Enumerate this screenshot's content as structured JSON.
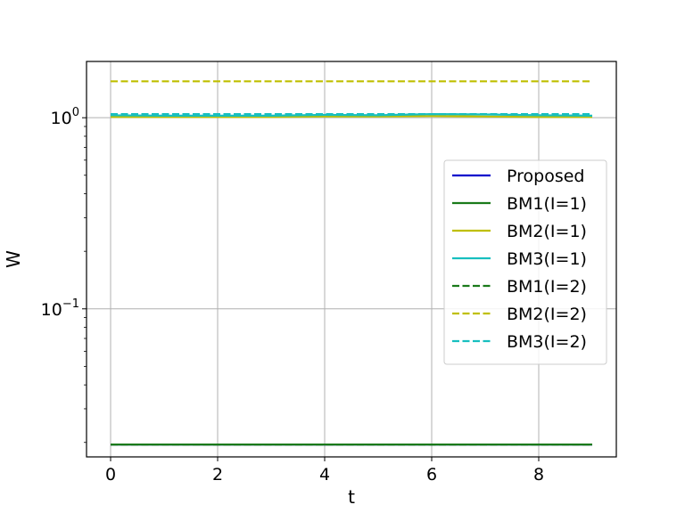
{
  "chart_data": {
    "type": "line",
    "title": "",
    "xlabel": "t",
    "ylabel": "W",
    "xlim": [
      -0.45,
      9.45
    ],
    "ylim": [
      0.0168,
      1.97
    ],
    "yscale": "log",
    "grid": true,
    "legend_position": "right",
    "x_ticks": [
      0,
      2,
      4,
      6,
      8
    ],
    "x_tick_labels": [
      "0",
      "2",
      "4",
      "6",
      "8"
    ],
    "y_ticks": [
      1,
      0.1
    ],
    "y_tick_labels": [
      {
        "base": "10",
        "exp": "0"
      },
      {
        "base": "10",
        "exp": "−1"
      }
    ],
    "x": [
      0,
      1,
      2,
      3,
      4,
      5,
      6,
      7,
      8,
      9
    ],
    "series": [
      {
        "name": "Proposed",
        "color": "#0000cc",
        "dash": "solid",
        "values": [
          0.0195,
          0.0195,
          0.0195,
          0.0195,
          0.0195,
          0.0195,
          0.0195,
          0.0195,
          0.0195,
          0.0195
        ]
      },
      {
        "name": "BM1(I=1)",
        "color": "#1a7a1a",
        "dash": "solid",
        "values": [
          0.0195,
          0.0195,
          0.0195,
          0.0195,
          0.0195,
          0.0195,
          0.0195,
          0.0195,
          0.0195,
          0.0195
        ]
      },
      {
        "name": "BM2(I=1)",
        "color": "#bfbf00",
        "dash": "solid",
        "values": [
          1.01,
          1.01,
          1.01,
          1.01,
          1.015,
          1.015,
          1.02,
          1.015,
          1.01,
          1.01
        ]
      },
      {
        "name": "BM3(I=1)",
        "color": "#17bfbf",
        "dash": "solid",
        "values": [
          1.03,
          1.025,
          1.025,
          1.025,
          1.035,
          1.03,
          1.045,
          1.04,
          1.03,
          1.025
        ]
      },
      {
        "name": "BM1(I=2)",
        "color": "#1a7a1a",
        "dash": "dashed",
        "values": [
          0.0195,
          0.0195,
          0.0195,
          0.0195,
          0.0195,
          0.0195,
          0.0195,
          0.0195,
          0.0195,
          0.0195
        ]
      },
      {
        "name": "BM2(I=2)",
        "color": "#bfbf00",
        "dash": "dashed",
        "values": [
          1.55,
          1.55,
          1.55,
          1.55,
          1.55,
          1.55,
          1.55,
          1.55,
          1.55,
          1.55
        ]
      },
      {
        "name": "BM3(I=2)",
        "color": "#17bfbf",
        "dash": "dashed",
        "values": [
          1.045,
          1.045,
          1.045,
          1.045,
          1.045,
          1.045,
          1.045,
          1.045,
          1.045,
          1.045
        ]
      }
    ]
  }
}
